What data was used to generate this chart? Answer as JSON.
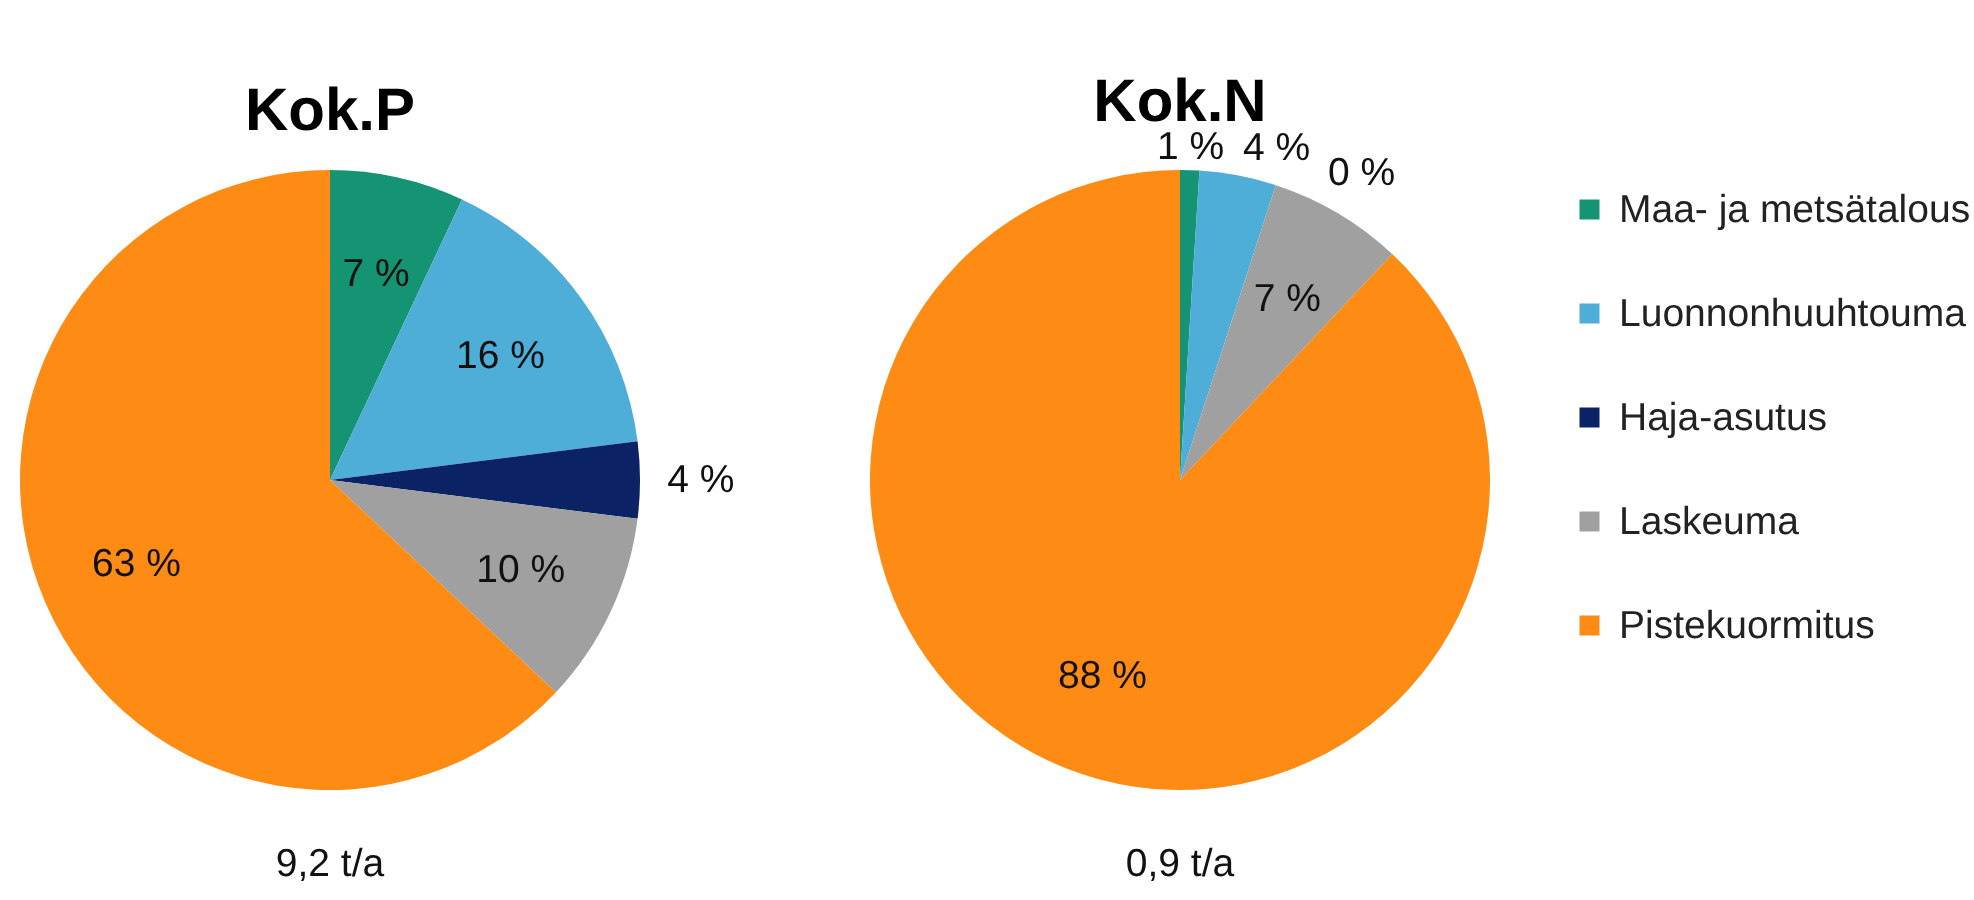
{
  "chart_data": [
    {
      "type": "pie",
      "title": "Kok.P",
      "categories": [
        null,
        null,
        null,
        null,
        null
      ],
      "values": [
        7,
        16,
        4,
        10,
        63
      ],
      "colors": [
        "#159473",
        "#4eaed8",
        "#0b2265",
        "#a0a0a0",
        "#fd8b14"
      ],
      "value_labels": [
        "7 %",
        "16 %",
        "4 %",
        "10 %",
        "63 %"
      ],
      "annotations": [
        "9,2 t/a"
      ],
      "legend": false
    },
    {
      "type": "pie",
      "title": "Kok.N",
      "categories": [
        "Maa- ja metsätalous",
        "Luonnonhuuhtouma",
        "Haja-asutus",
        "Laskeuma",
        "Pistekuormitus"
      ],
      "values": [
        1,
        4,
        0,
        7,
        88
      ],
      "colors": [
        "#159473",
        "#4eaed8",
        "#0b2265",
        "#a0a0a0",
        "#fd8b14"
      ],
      "value_labels": [
        "1 %",
        "4 %",
        "0 %",
        "7 %",
        "88 %"
      ],
      "annotations": [
        "0,9 t/a"
      ],
      "legend": "right"
    }
  ]
}
